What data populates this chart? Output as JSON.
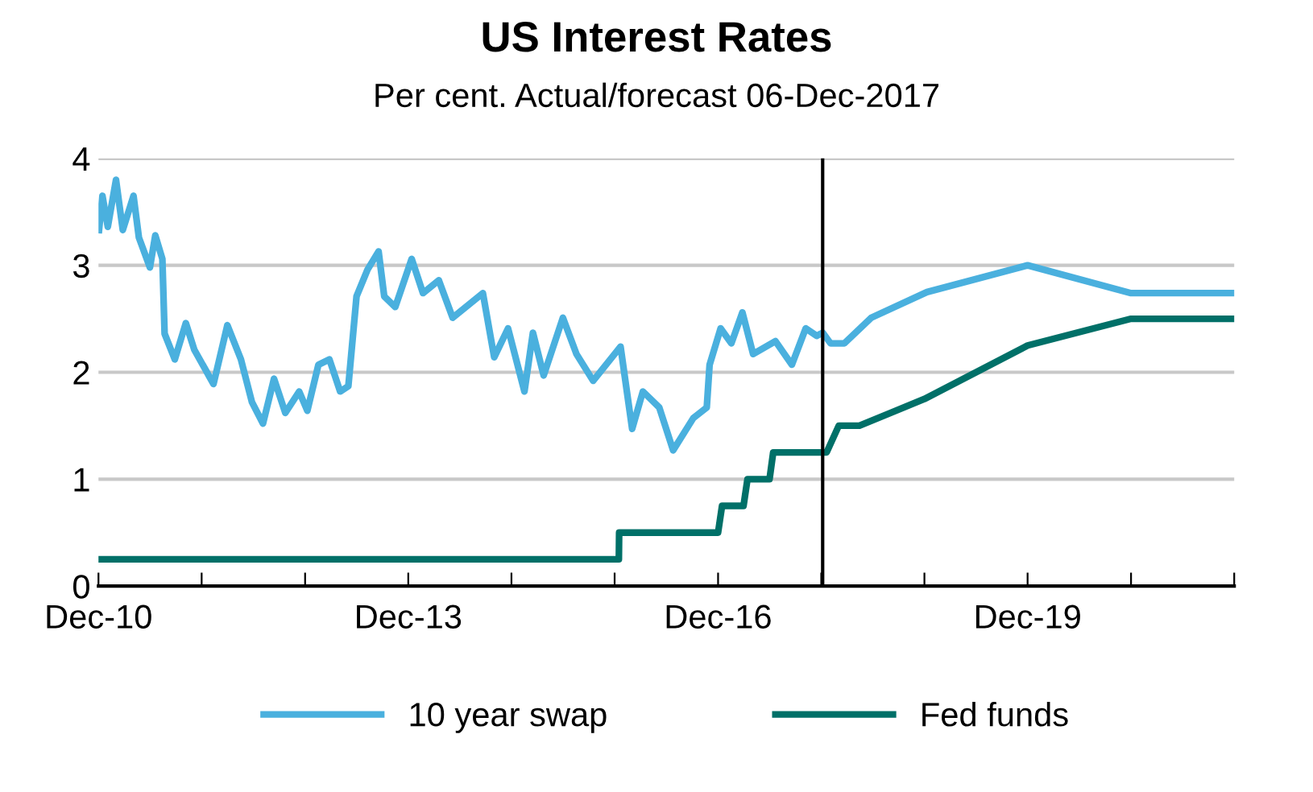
{
  "chart_data": {
    "type": "line",
    "title": "US Interest Rates",
    "subtitle": "Per cent. Actual/forecast 06-Dec-2017",
    "series": [
      {
        "name": "10 year swap",
        "color": "#4ab0de",
        "x": [
          "2010-12-03",
          "2010-12-15",
          "2011-01-03",
          "2011-02-01",
          "2011-02-25",
          "2011-04-04",
          "2011-04-23",
          "2011-06-01",
          "2011-06-20",
          "2011-07-15",
          "2011-07-23",
          "2011-08-28",
          "2011-10-06",
          "2011-11-05",
          "2012-01-12",
          "2012-03-01",
          "2012-04-18",
          "2012-05-27",
          "2012-07-05",
          "2012-08-13",
          "2012-09-22",
          "2012-11-10",
          "2012-12-09",
          "2013-01-17",
          "2013-02-25",
          "2013-04-04",
          "2013-05-03",
          "2013-06-01",
          "2013-07-10",
          "2013-08-18",
          "2013-09-07",
          "2013-10-16",
          "2013-12-13",
          "2014-01-22",
          "2014-03-19",
          "2014-05-07",
          "2014-08-22",
          "2014-10-01",
          "2014-11-19",
          "2015-01-16",
          "2015-02-15",
          "2015-03-25",
          "2015-06-01",
          "2015-07-19",
          "2015-09-16",
          "2015-12-22",
          "2016-02-01",
          "2016-03-10",
          "2016-05-07",
          "2016-06-25",
          "2016-09-04",
          "2016-10-22",
          "2016-11-01",
          "2016-12-10",
          "2017-01-17",
          "2017-02-25",
          "2017-04-04",
          "2017-06-22",
          "2017-08-19",
          "2017-10-07",
          "2017-11-15",
          "2017-12-06",
          "2018-01-03",
          "2018-02-21",
          "2018-05-27",
          "2018-12-10",
          "2019-12-01",
          "2020-12-01",
          "2021-12-01"
        ],
        "values": [
          3.33,
          3.65,
          3.36,
          3.8,
          3.33,
          3.65,
          3.26,
          2.98,
          3.28,
          3.06,
          2.36,
          2.12,
          2.46,
          2.21,
          1.89,
          2.44,
          2.12,
          1.72,
          1.52,
          1.94,
          1.62,
          1.82,
          1.64,
          2.07,
          2.12,
          1.82,
          1.87,
          2.71,
          2.96,
          3.13,
          2.71,
          2.61,
          3.06,
          2.74,
          2.86,
          2.51,
          2.74,
          2.14,
          2.41,
          1.82,
          2.37,
          1.97,
          2.51,
          2.17,
          1.92,
          2.24,
          1.47,
          1.82,
          1.67,
          1.27,
          1.57,
          1.67,
          2.07,
          2.41,
          2.27,
          2.56,
          2.17,
          2.29,
          2.07,
          2.41,
          2.34,
          2.37,
          2.27,
          2.27,
          2.51,
          2.75,
          3.0,
          2.74,
          2.74
        ]
      },
      {
        "name": "Fed funds",
        "color": "#007068",
        "x": [
          "2010-12-01",
          "2015-12-16",
          "2015-12-17",
          "2016-12-01",
          "2016-12-15",
          "2017-03-01",
          "2017-03-15",
          "2017-06-01",
          "2017-06-14",
          "2017-12-20",
          "2018-02-01",
          "2018-04-15",
          "2018-12-01",
          "2019-12-01",
          "2020-12-01",
          "2021-12-01"
        ],
        "values": [
          0.25,
          0.25,
          0.5,
          0.5,
          0.75,
          0.75,
          1.0,
          1.0,
          1.25,
          1.25,
          1.5,
          1.5,
          1.75,
          2.25,
          2.5,
          2.5
        ]
      }
    ],
    "xlim": [
      "2010-12-01",
      "2021-12-01"
    ],
    "xticks": [
      {
        "value": "2010-12-01",
        "label": "Dec-10"
      },
      {
        "value": "2011-12-01",
        "label": null
      },
      {
        "value": "2012-12-01",
        "label": null
      },
      {
        "value": "2013-12-01",
        "label": "Dec-13"
      },
      {
        "value": "2014-12-01",
        "label": null
      },
      {
        "value": "2015-12-01",
        "label": null
      },
      {
        "value": "2016-12-01",
        "label": "Dec-16"
      },
      {
        "value": "2017-12-01",
        "label": null
      },
      {
        "value": "2018-12-01",
        "label": null
      },
      {
        "value": "2019-12-01",
        "label": "Dec-19"
      },
      {
        "value": "2020-12-01",
        "label": null
      },
      {
        "value": "2021-12-01",
        "label": null
      }
    ],
    "ylim": [
      0,
      4
    ],
    "yticks": [
      0,
      1,
      2,
      3,
      4
    ],
    "ref_lines": [
      {
        "axis": "x",
        "value": "2017-12-06",
        "color": "#000000"
      }
    ],
    "grid": "y",
    "legend": "bottom",
    "marker": "none",
    "line_style": "solid"
  }
}
